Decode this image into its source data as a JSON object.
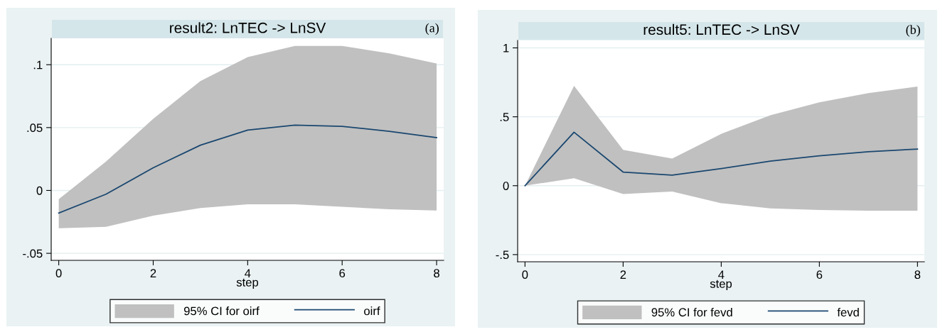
{
  "chart_data": [
    {
      "type": "line",
      "title": "result2: LnTEC -> LnSV",
      "xlabel": "step",
      "annotations": [
        "(a)",
        "95% CI for oirf"
      ],
      "x": [
        0,
        1,
        2,
        3,
        4,
        5,
        6,
        7,
        8
      ],
      "series": [
        {
          "type": "line",
          "name": "oirf",
          "color": "#1a476f",
          "values": [
            -0.018,
            -0.003,
            0.018,
            0.036,
            0.048,
            0.052,
            0.051,
            0.047,
            0.042
          ],
          "lower": [
            -0.03,
            -0.029,
            -0.02,
            -0.014,
            -0.011,
            -0.011,
            -0.013,
            -0.015,
            -0.016
          ],
          "upper": [
            -0.007,
            0.023,
            0.057,
            0.087,
            0.106,
            0.115,
            0.115,
            0.109,
            0.101
          ]
        }
      ],
      "xlim": [
        -0.16,
        8.15
      ],
      "ylim": [
        -0.0556,
        0.121
      ],
      "xticks": [
        0,
        2,
        4,
        6,
        8
      ],
      "yticks": [
        {
          "value": -0.05,
          "label": "-.05"
        },
        0,
        {
          "value": 0.05,
          "label": ".05"
        },
        {
          "value": 0.1,
          "label": ".1"
        }
      ],
      "grid": "y",
      "legend": "bottom"
    },
    {
      "type": "line",
      "title": "result5: LnTEC -> LnSV",
      "xlabel": "step",
      "annotations": [
        "(b)",
        "95% CI for fevd"
      ],
      "x": [
        0,
        1,
        2,
        3,
        4,
        5,
        6,
        7,
        8
      ],
      "series": [
        {
          "type": "line",
          "name": "fevd",
          "color": "#1a476f",
          "values": [
            0,
            0.388,
            0.099,
            0.077,
            0.124,
            0.178,
            0.217,
            0.247,
            0.266
          ],
          "lower": [
            0,
            0.054,
            -0.06,
            -0.043,
            -0.127,
            -0.165,
            -0.176,
            -0.182,
            -0.182
          ],
          "upper": [
            0,
            0.725,
            0.26,
            0.197,
            0.376,
            0.511,
            0.605,
            0.672,
            0.719
          ]
        }
      ],
      "xlim": [
        -0.15,
        8.14
      ],
      "ylim": [
        -0.552,
        1.054
      ],
      "xticks": [
        0,
        2,
        4,
        6,
        8
      ],
      "yticks": [
        {
          "value": -0.5,
          "label": "-.5"
        },
        0,
        {
          "value": 0.5,
          "label": ".5"
        },
        1
      ],
      "grid": "y",
      "legend": "bottom"
    }
  ]
}
